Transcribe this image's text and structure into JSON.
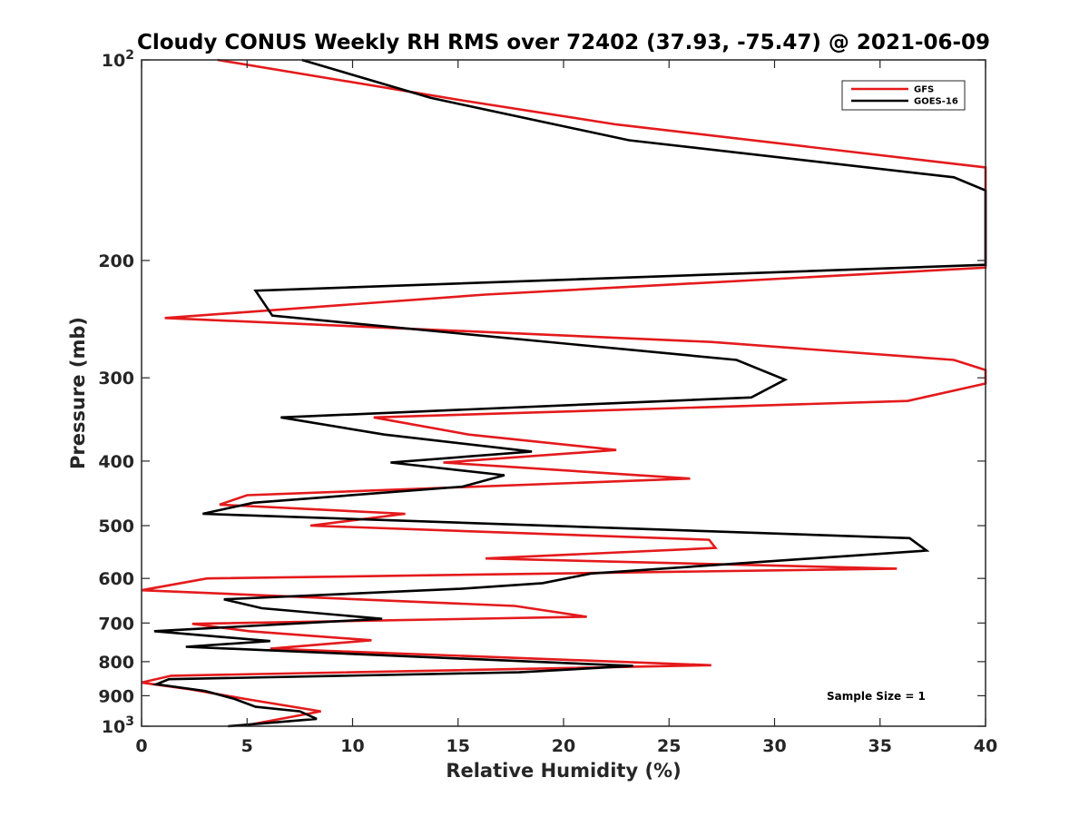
{
  "chart_data": {
    "type": "line",
    "title": "Cloudy CONUS Weekly RH RMS over 72402 (37.93, -75.47) @ 2021-06-09",
    "xlabel": "Relative Humidity (%)",
    "ylabel": "Pressure (mb)",
    "xlim": [
      0,
      40
    ],
    "ylim": [
      100,
      1000
    ],
    "y_scale": "log",
    "y_reversed": true,
    "x_ticks": [
      0,
      5,
      10,
      15,
      20,
      25,
      30,
      35,
      40
    ],
    "x_tick_labels": [
      "0",
      "5",
      "10",
      "15",
      "20",
      "25",
      "30",
      "35",
      "40"
    ],
    "y_ticks": [
      100,
      200,
      300,
      400,
      500,
      600,
      700,
      800,
      900,
      1000
    ],
    "y_tick_labels": [
      {
        "base": "10",
        "exp": "2"
      },
      {
        "base": "200",
        "exp": ""
      },
      {
        "base": "300",
        "exp": ""
      },
      {
        "base": "400",
        "exp": ""
      },
      {
        "base": "500",
        "exp": ""
      },
      {
        "base": "600",
        "exp": ""
      },
      {
        "base": "700",
        "exp": ""
      },
      {
        "base": "800",
        "exp": ""
      },
      {
        "base": "900",
        "exp": ""
      },
      {
        "base": "10",
        "exp": "3"
      }
    ],
    "grid": false,
    "legend_position": "top-right",
    "annotation": "Sample Size = 1",
    "series": [
      {
        "name": "GFS",
        "color": "#e41a1c",
        "points": [
          [
            3.6,
            100
          ],
          [
            15.2,
            115
          ],
          [
            22.5,
            125
          ],
          [
            40,
            145
          ],
          [
            40,
            205
          ],
          [
            16.3,
            225
          ],
          [
            1.1,
            244
          ],
          [
            27.0,
            265
          ],
          [
            38.5,
            282
          ],
          [
            40,
            292
          ],
          [
            40,
            306
          ],
          [
            36.3,
            325
          ],
          [
            11.0,
            344
          ],
          [
            15.5,
            365
          ],
          [
            22.5,
            385
          ],
          [
            14.3,
            402
          ],
          [
            26.0,
            425
          ],
          [
            5.0,
            450
          ],
          [
            3.7,
            465
          ],
          [
            12.5,
            480
          ],
          [
            8.0,
            500
          ],
          [
            26.9,
            525
          ],
          [
            27.2,
            540
          ],
          [
            16.3,
            560
          ],
          [
            35.8,
            580
          ],
          [
            3.1,
            600
          ],
          [
            0,
            625
          ],
          [
            17.7,
            660
          ],
          [
            21.1,
            685
          ],
          [
            2.4,
            702
          ],
          [
            5.1,
            720
          ],
          [
            10.9,
            743
          ],
          [
            6.1,
            765
          ],
          [
            27.0,
            810
          ],
          [
            1.4,
            840
          ],
          [
            0,
            860
          ],
          [
            2.3,
            880
          ],
          [
            4.9,
            910
          ],
          [
            8.5,
            950
          ],
          [
            5.1,
            995
          ]
        ]
      },
      {
        "name": "GOES-16",
        "color": "#000000",
        "points": [
          [
            7.6,
            100
          ],
          [
            13.7,
            114
          ],
          [
            23.1,
            132
          ],
          [
            38.5,
            150
          ],
          [
            40,
            157
          ],
          [
            40,
            203
          ],
          [
            5.4,
            222
          ],
          [
            6.2,
            242
          ],
          [
            28.2,
            282
          ],
          [
            30.5,
            302
          ],
          [
            28.9,
            321
          ],
          [
            6.6,
            344
          ],
          [
            11.5,
            365
          ],
          [
            18.5,
            387
          ],
          [
            11.8,
            402
          ],
          [
            17.2,
            420
          ],
          [
            15.2,
            437
          ],
          [
            5.3,
            462
          ],
          [
            2.9,
            480
          ],
          [
            36.4,
            522
          ],
          [
            37.2,
            545
          ],
          [
            21.3,
            590
          ],
          [
            19.0,
            610
          ],
          [
            15.1,
            622
          ],
          [
            3.9,
            645
          ],
          [
            5.7,
            665
          ],
          [
            11.4,
            690
          ],
          [
            0.6,
            720
          ],
          [
            6.1,
            745
          ],
          [
            2.1,
            760
          ],
          [
            23.3,
            812
          ],
          [
            17.9,
            830
          ],
          [
            1.3,
            850
          ],
          [
            0.7,
            865
          ],
          [
            3.0,
            885
          ],
          [
            4.4,
            910
          ],
          [
            5.4,
            935
          ],
          [
            7.5,
            950
          ],
          [
            8.3,
            975
          ],
          [
            4.1,
            1000
          ]
        ]
      }
    ]
  }
}
